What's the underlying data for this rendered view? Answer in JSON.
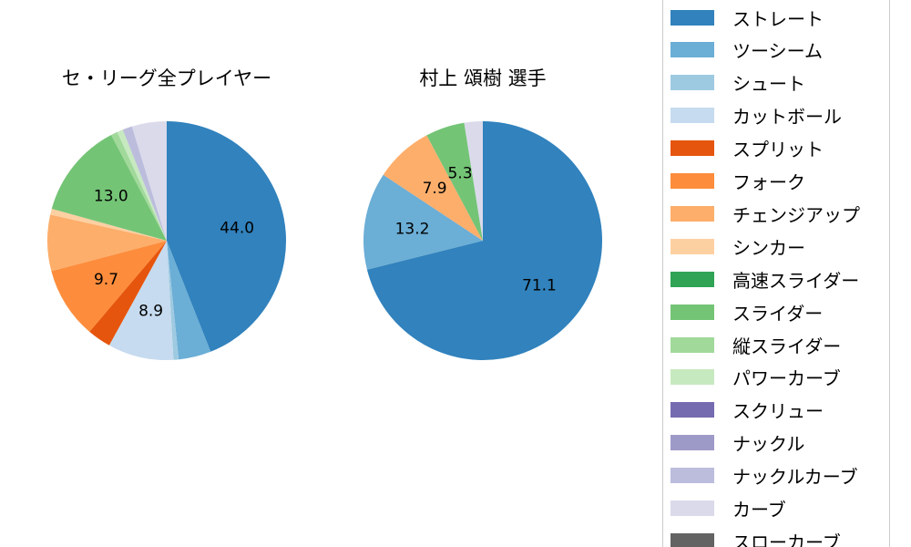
{
  "chart_data": [
    {
      "type": "pie",
      "title": "セ・リーグ全プレイヤー",
      "categories": [
        "ストレート",
        "ツーシーム",
        "シュート",
        "カットボール",
        "スプリット",
        "フォーク",
        "チェンジアップ",
        "シンカー",
        "スライダー",
        "縦スライダー",
        "パワーカーブ",
        "ナックルカーブ",
        "カーブ"
      ],
      "values": [
        44.0,
        4.4,
        0.7,
        8.9,
        3.2,
        9.7,
        7.6,
        0.8,
        13.0,
        0.9,
        0.8,
        1.3,
        4.7
      ],
      "labels": [
        "44.0",
        "",
        "",
        "8.9",
        "",
        "9.7",
        "",
        "",
        "13.0",
        "",
        "",
        "",
        ""
      ]
    },
    {
      "type": "pie",
      "title": "村上 頌樹  選手",
      "categories": [
        "ストレート",
        "ツーシーム",
        "チェンジアップ",
        "スライダー",
        "カーブ"
      ],
      "values": [
        71.1,
        13.2,
        7.9,
        5.3,
        2.5
      ],
      "labels": [
        "71.1",
        "13.2",
        "7.9",
        "5.3",
        ""
      ]
    }
  ],
  "legend": {
    "position": "right",
    "items": [
      {
        "label": "ストレート",
        "color": "#3182bd"
      },
      {
        "label": "ツーシーム",
        "color": "#6baed6"
      },
      {
        "label": "シュート",
        "color": "#9ecae1"
      },
      {
        "label": "カットボール",
        "color": "#c6dbef"
      },
      {
        "label": "スプリット",
        "color": "#e6550d"
      },
      {
        "label": "フォーク",
        "color": "#fd8d3c"
      },
      {
        "label": "チェンジアップ",
        "color": "#fdae6b"
      },
      {
        "label": "シンカー",
        "color": "#fdd0a2"
      },
      {
        "label": "高速スライダー",
        "color": "#31a354"
      },
      {
        "label": "スライダー",
        "color": "#74c476"
      },
      {
        "label": "縦スライダー",
        "color": "#a1d99b"
      },
      {
        "label": "パワーカーブ",
        "color": "#c7e9c0"
      },
      {
        "label": "スクリュー",
        "color": "#756bb1"
      },
      {
        "label": "ナックル",
        "color": "#9e9ac8"
      },
      {
        "label": "ナックルカーブ",
        "color": "#bcbddc"
      },
      {
        "label": "カーブ",
        "color": "#dadaeb"
      },
      {
        "label": "スローカーブ",
        "color": "#636363"
      }
    ]
  }
}
